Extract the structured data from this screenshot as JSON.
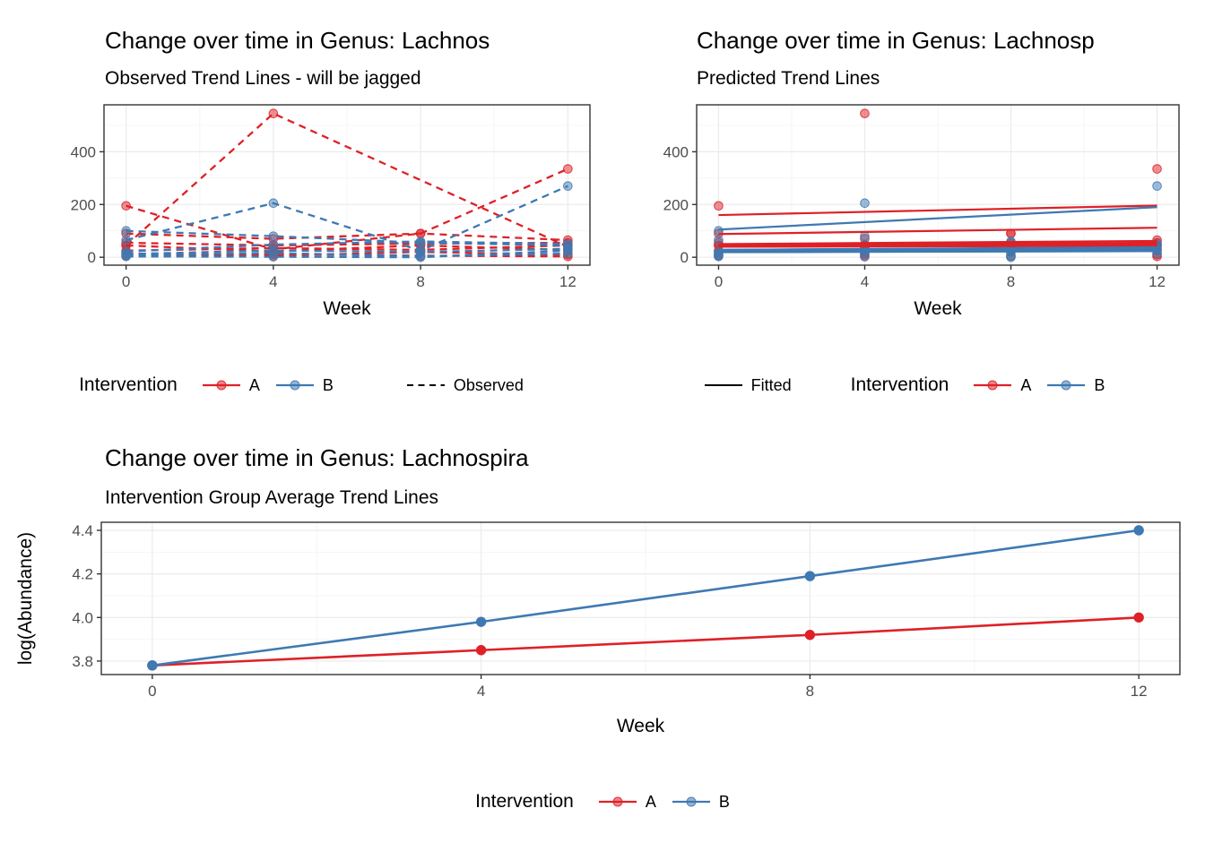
{
  "colors": {
    "intervention_a": "#DE2127",
    "intervention_b": "#3E79B2",
    "observed_key": "#000000",
    "fitted_key": "#000000",
    "grid_major": "#EBEBEB",
    "grid_minor": "#F4F4F4",
    "panel_border": "#333333",
    "tick_label": "#4D4D4D"
  },
  "chart_data": [
    {
      "id": "observed",
      "type": "line",
      "title": "Change over time in Genus: Lachnos",
      "subtitle": "Observed Trend Lines - will be jagged",
      "xlabel": "Week",
      "ylabel": "",
      "linestyle": "dashed",
      "x": [
        0,
        4,
        8,
        12
      ],
      "x_ticks": [
        0,
        4,
        8,
        12
      ],
      "x_tick_labels": [
        "0",
        "4",
        "8",
        "12"
      ],
      "y_ticks": [
        0,
        200,
        400
      ],
      "y_tick_labels": [
        "0",
        "200",
        "400"
      ],
      "xlim": [
        -0.6,
        12.6
      ],
      "ylim": [
        -30,
        578
      ],
      "grid": true,
      "series": [
        {
          "group": "A",
          "values": [
            195,
            30,
            90,
            335
          ]
        },
        {
          "group": "A",
          "values": [
            45,
            545,
            null,
            40
          ]
        },
        {
          "group": "A",
          "values": [
            90,
            70,
            90,
            65
          ]
        },
        {
          "group": "A",
          "values": [
            55,
            45,
            52,
            55
          ]
        },
        {
          "group": "A",
          "values": [
            45,
            22,
            45,
            28
          ]
        },
        {
          "group": "A",
          "values": [
            25,
            35,
            28,
            45
          ]
        },
        {
          "group": "A",
          "values": [
            15,
            6,
            20,
            10
          ]
        },
        {
          "group": "A",
          "values": [
            5,
            12,
            6,
            3
          ]
        },
        {
          "group": "B",
          "values": [
            65,
            205,
            25,
            270
          ]
        },
        {
          "group": "B",
          "values": [
            100,
            80,
            55,
            45
          ]
        },
        {
          "group": "B",
          "values": [
            22,
            48,
            60,
            50
          ]
        },
        {
          "group": "B",
          "values": [
            12,
            26,
            20,
            32
          ]
        },
        {
          "group": "B",
          "values": [
            8,
            16,
            4,
            14
          ]
        },
        {
          "group": "B",
          "values": [
            3,
            2,
            0,
            25
          ]
        }
      ],
      "legend": {
        "title": "Intervention",
        "a": "A",
        "b": "B",
        "linetype_label": "Observed",
        "position": "bottom"
      }
    },
    {
      "id": "predicted",
      "type": "line",
      "title": "Change over time in Genus: Lachnosp",
      "subtitle": "Predicted Trend Lines",
      "xlabel": "Week",
      "ylabel": "",
      "points_from": "observed",
      "x": [
        0,
        4,
        8,
        12
      ],
      "x_ticks": [
        0,
        4,
        8,
        12
      ],
      "x_tick_labels": [
        "0",
        "4",
        "8",
        "12"
      ],
      "y_ticks": [
        0,
        200,
        400
      ],
      "y_tick_labels": [
        "0",
        "200",
        "400"
      ],
      "xlim": [
        -0.6,
        12.6
      ],
      "ylim": [
        -30,
        578
      ],
      "grid": true,
      "fitted": [
        {
          "group": "A",
          "y0": 160,
          "y1": 196,
          "w": 2.2
        },
        {
          "group": "A",
          "y0": 88,
          "y1": 112,
          "w": 2.2
        },
        {
          "group": "A",
          "y0": 50,
          "y1": 62,
          "w": 2.2
        },
        {
          "group": "A",
          "y0": 46,
          "y1": 52,
          "w": 3.8
        },
        {
          "group": "A",
          "y0": 43,
          "y1": 47,
          "w": 3.8
        },
        {
          "group": "A",
          "y0": 40,
          "y1": 43,
          "w": 2.2
        },
        {
          "group": "B",
          "y0": 105,
          "y1": 190,
          "w": 2.2
        },
        {
          "group": "B",
          "y0": 28,
          "y1": 38,
          "w": 2.2
        },
        {
          "group": "B",
          "y0": 25,
          "y1": 32,
          "w": 4.2
        },
        {
          "group": "B",
          "y0": 22,
          "y1": 27,
          "w": 3.2
        },
        {
          "group": "B",
          "y0": 19,
          "y1": 23,
          "w": 2.2
        }
      ],
      "legend": {
        "linetype_label": "Fitted",
        "title": "Intervention",
        "a": "A",
        "b": "B",
        "position": "bottom"
      }
    },
    {
      "id": "average",
      "type": "line",
      "title": "Change over time in Genus: Lachnospira",
      "subtitle": "Intervention Group Average Trend Lines",
      "xlabel": "Week",
      "ylabel": "log(Abundance)",
      "x": [
        0,
        4,
        8,
        12
      ],
      "x_ticks": [
        0,
        4,
        8,
        12
      ],
      "x_tick_labels": [
        "0",
        "4",
        "8",
        "12"
      ],
      "y_ticks": [
        3.8,
        4.0,
        4.2,
        4.4
      ],
      "y_tick_labels": [
        "3.8",
        "4.0",
        "4.2",
        "4.4"
      ],
      "xlim": [
        -0.62,
        12.5
      ],
      "ylim": [
        3.738,
        4.437
      ],
      "grid": true,
      "series": [
        {
          "group": "A",
          "values": [
            3.78,
            3.85,
            3.92,
            4.0
          ]
        },
        {
          "group": "B",
          "values": [
            3.78,
            3.98,
            4.19,
            4.4
          ]
        }
      ],
      "legend": {
        "title": "Intervention",
        "a": "A",
        "b": "B",
        "position": "bottom"
      }
    }
  ]
}
